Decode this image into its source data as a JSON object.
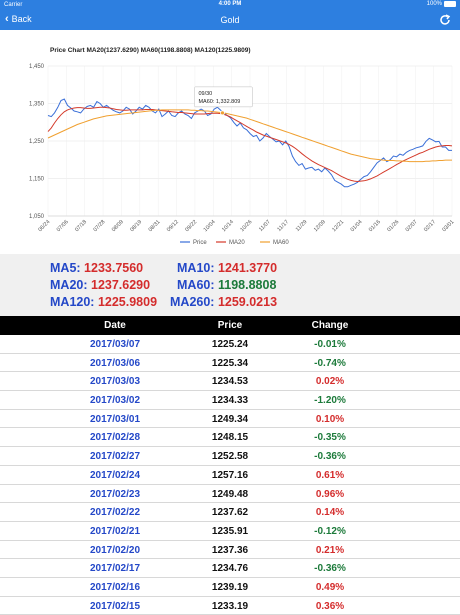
{
  "status_bar": {
    "carrier": "Carrier",
    "time": "4:00 PM",
    "battery": "100%"
  },
  "nav": {
    "back_label": "Back",
    "title": "Gold"
  },
  "chart_data": {
    "type": "line",
    "title": "Price Chart MA20(1237.6290) MA60(1198.8808) MA120(1225.9809)",
    "x_ticks": [
      "06/24",
      "07/06",
      "07/18",
      "07/28",
      "08/09",
      "08/19",
      "08/31",
      "09/12",
      "09/22",
      "10/04",
      "10/14",
      "10/26",
      "11/07",
      "11/17",
      "11/29",
      "12/09",
      "12/21",
      "01/04",
      "01/16",
      "01/26",
      "02/07",
      "02/17",
      "03/01"
    ],
    "ylim": [
      1050,
      1450
    ],
    "y_ticks": [
      "1,450",
      "1,350",
      "1,250",
      "1,150",
      "1,050"
    ],
    "grid": true,
    "legend_position": "bottom",
    "tooltip": {
      "date": "09/30",
      "text": "MA60: 1,332.809"
    },
    "series": [
      {
        "name": "Price",
        "color": "#3a6fd8",
        "values": [
          1318,
          1315,
          1325,
          1340,
          1358,
          1362,
          1345,
          1338,
          1330,
          1328,
          1325,
          1335,
          1342,
          1345,
          1340,
          1355,
          1350,
          1340,
          1345,
          1338,
          1332,
          1328,
          1325,
          1330,
          1340,
          1335,
          1322,
          1330,
          1340,
          1335,
          1345,
          1340,
          1330,
          1325,
          1335,
          1315,
          1322,
          1330,
          1318,
          1315,
          1325,
          1330,
          1322,
          1318,
          1310,
          1325,
          1330,
          1335,
          1330,
          1318,
          1322,
          1335,
          1340,
          1332,
          1325,
          1318,
          1312,
          1300,
          1290,
          1298,
          1285,
          1280,
          1270,
          1262,
          1265,
          1250,
          1258,
          1270,
          1262,
          1255,
          1248,
          1250,
          1240,
          1250,
          1235,
          1210,
          1195,
          1185,
          1190,
          1175,
          1178,
          1180,
          1172,
          1175,
          1168,
          1178,
          1170,
          1160,
          1145,
          1140,
          1135,
          1128,
          1128,
          1132,
          1135,
          1140,
          1148,
          1155,
          1158,
          1168,
          1180,
          1192,
          1198,
          1205,
          1195,
          1200,
          1210,
          1208,
          1215,
          1212,
          1220,
          1225,
          1228,
          1232,
          1234,
          1237,
          1249,
          1257,
          1253,
          1248,
          1249,
          1234,
          1234,
          1225,
          1225
        ]
      },
      {
        "name": "MA20",
        "color": "#d43a2a",
        "values": [
          1275,
          1285,
          1298,
          1310,
          1320,
          1328,
          1333,
          1336,
          1338,
          1339,
          1339,
          1338,
          1337,
          1337,
          1338,
          1339,
          1340,
          1340,
          1339,
          1338,
          1336,
          1334,
          1333,
          1332,
          1332,
          1333,
          1333,
          1333,
          1333,
          1333,
          1334,
          1334,
          1334,
          1333,
          1332,
          1331,
          1330,
          1329,
          1328,
          1327,
          1326,
          1326,
          1325,
          1324,
          1323,
          1322,
          1322,
          1322,
          1322,
          1323,
          1324,
          1324,
          1324,
          1323,
          1321,
          1318,
          1314,
          1309,
          1304,
          1299,
          1294,
          1289,
          1284,
          1279,
          1274,
          1270,
          1266,
          1263,
          1260,
          1257,
          1254,
          1251,
          1248,
          1245,
          1241,
          1236,
          1230,
          1223,
          1216,
          1209,
          1203,
          1197,
          1192,
          1187,
          1183,
          1179,
          1175,
          1171,
          1166,
          1161,
          1156,
          1152,
          1148,
          1145,
          1143,
          1142,
          1143,
          1144,
          1146,
          1149,
          1153,
          1157,
          1162,
          1167,
          1172,
          1177,
          1182,
          1187,
          1192,
          1197,
          1201,
          1205,
          1209,
          1213,
          1217,
          1220,
          1224,
          1228,
          1231,
          1234,
          1236,
          1237,
          1238,
          1238,
          1237
        ]
      },
      {
        "name": "MA60",
        "color": "#f0a030",
        "values": [
          1258,
          1262,
          1266,
          1270,
          1274,
          1278,
          1282,
          1286,
          1290,
          1294,
          1297,
          1300,
          1303,
          1306,
          1309,
          1311,
          1313,
          1315,
          1317,
          1318,
          1319,
          1320,
          1321,
          1322,
          1323,
          1324,
          1325,
          1326,
          1327,
          1328,
          1329,
          1330,
          1331,
          1332,
          1332,
          1333,
          1333,
          1333,
          1333,
          1333,
          1333,
          1333,
          1333,
          1333,
          1332,
          1332,
          1331,
          1331,
          1330,
          1330,
          1329,
          1328,
          1327,
          1326,
          1325,
          1323,
          1321,
          1319,
          1317,
          1315,
          1313,
          1311,
          1308,
          1305,
          1302,
          1299,
          1296,
          1293,
          1290,
          1287,
          1284,
          1281,
          1278,
          1275,
          1272,
          1269,
          1266,
          1263,
          1260,
          1257,
          1254,
          1251,
          1248,
          1245,
          1242,
          1239,
          1236,
          1233,
          1230,
          1227,
          1224,
          1221,
          1218,
          1215,
          1213,
          1211,
          1209,
          1207,
          1205,
          1203,
          1202,
          1201,
          1200,
          1199,
          1198,
          1198,
          1198,
          1197,
          1197,
          1196,
          1196,
          1195,
          1195,
          1195,
          1195,
          1195,
          1196,
          1196,
          1197,
          1197,
          1198,
          1198,
          1199,
          1199,
          1199
        ]
      }
    ]
  },
  "ma": {
    "ma5_label": "MA5:",
    "ma5_value": "1233.7560",
    "ma10_label": "MA10:",
    "ma10_value": "1241.3770",
    "ma20_label": "MA20:",
    "ma20_value": "1237.6290",
    "ma60_label": "MA60:",
    "ma60_value": "1198.8808",
    "ma120_label": "MA120:",
    "ma120_value": "1225.9809",
    "ma260_label": "MA260:",
    "ma260_value": "1259.0213"
  },
  "table": {
    "headers": {
      "date": "Date",
      "price": "Price",
      "change": "Change"
    },
    "rows": [
      {
        "date": "2017/03/07",
        "price": "1225.24",
        "change": "-0.01%",
        "dir": "neg"
      },
      {
        "date": "2017/03/06",
        "price": "1225.34",
        "change": "-0.74%",
        "dir": "neg"
      },
      {
        "date": "2017/03/03",
        "price": "1234.53",
        "change": "0.02%",
        "dir": "pos"
      },
      {
        "date": "2017/03/02",
        "price": "1234.33",
        "change": "-1.20%",
        "dir": "neg"
      },
      {
        "date": "2017/03/01",
        "price": "1249.34",
        "change": "0.10%",
        "dir": "pos"
      },
      {
        "date": "2017/02/28",
        "price": "1248.15",
        "change": "-0.35%",
        "dir": "neg"
      },
      {
        "date": "2017/02/27",
        "price": "1252.58",
        "change": "-0.36%",
        "dir": "neg"
      },
      {
        "date": "2017/02/24",
        "price": "1257.16",
        "change": "0.61%",
        "dir": "pos"
      },
      {
        "date": "2017/02/23",
        "price": "1249.48",
        "change": "0.96%",
        "dir": "pos"
      },
      {
        "date": "2017/02/22",
        "price": "1237.62",
        "change": "0.14%",
        "dir": "pos"
      },
      {
        "date": "2017/02/21",
        "price": "1235.91",
        "change": "-0.12%",
        "dir": "neg"
      },
      {
        "date": "2017/02/20",
        "price": "1237.36",
        "change": "0.21%",
        "dir": "pos"
      },
      {
        "date": "2017/02/17",
        "price": "1234.76",
        "change": "-0.36%",
        "dir": "neg"
      },
      {
        "date": "2017/02/16",
        "price": "1239.19",
        "change": "0.49%",
        "dir": "pos"
      },
      {
        "date": "2017/02/15",
        "price": "1233.19",
        "change": "0.36%",
        "dir": "pos"
      }
    ]
  }
}
